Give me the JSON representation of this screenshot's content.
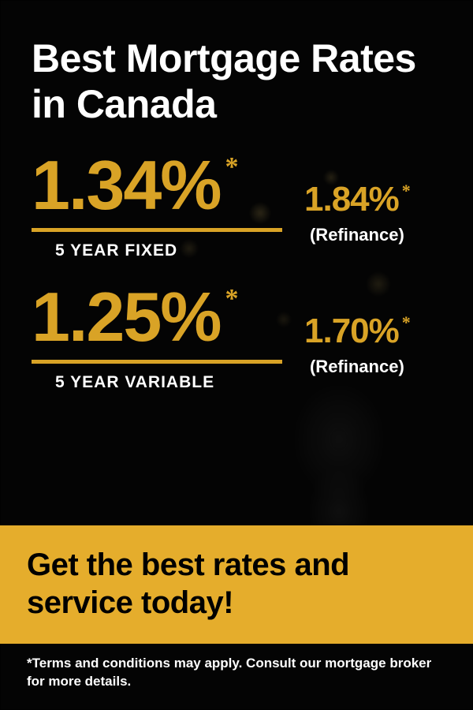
{
  "colors": {
    "accent": "#d9a326",
    "cta_bg": "#e5ad2c",
    "cta_text": "#000000",
    "bg": "#000000",
    "text_light": "#ffffff"
  },
  "title": "Best Mortgage Rates in Canada",
  "rates": [
    {
      "main": "1.34%",
      "main_label": "5 YEAR FIXED",
      "sub": "1.84%",
      "sub_label": "(Refinance)"
    },
    {
      "main": "1.25%",
      "main_label": "5 YEAR VARIABLE",
      "sub": "1.70%",
      "sub_label": "(Refinance)"
    }
  ],
  "asterisk": "*",
  "cta": "Get the best rates and service today!",
  "disclaimer": "*Terms and conditions may apply. Consult our mortgage broker for more details."
}
